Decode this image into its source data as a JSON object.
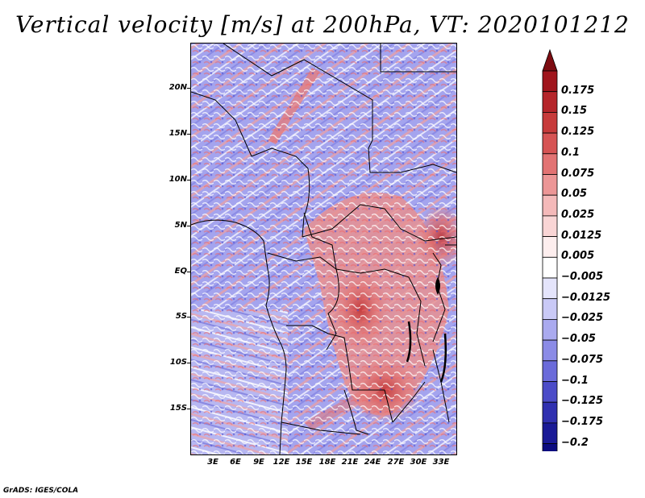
{
  "title": "Vertical velocity [m/s] at 200hPa, VT: 2020101212",
  "credit": "GrADS: IGES/COLA",
  "y_axis": {
    "labels": [
      "20N",
      "15N",
      "10N",
      "5N",
      "EQ",
      "5S",
      "10S",
      "15S"
    ]
  },
  "x_axis": {
    "labels": [
      "3E",
      "6E",
      "9E",
      "12E",
      "15E",
      "18E",
      "21E",
      "24E",
      "27E",
      "30E",
      "33E"
    ]
  },
  "colorbar": {
    "levels": [
      "0.175",
      "0.15",
      "0.125",
      "0.1",
      "0.075",
      "0.05",
      "0.025",
      "0.0125",
      "0.005",
      "−0.005",
      "−0.0125",
      "−0.025",
      "−0.05",
      "−0.075",
      "−0.1",
      "−0.125",
      "−0.175",
      "−0.2"
    ],
    "colors": [
      "#a0151c",
      "#b5252a",
      "#c73b3b",
      "#d65454",
      "#e27373",
      "#ec9696",
      "#f4b9b9",
      "#f9d5d5",
      "#fdeeee",
      "#ffffff",
      "#e4e4fb",
      "#c9c9f6",
      "#aaaaef",
      "#8b8be6",
      "#6b6bda",
      "#4c4cc8",
      "#3030b0",
      "#1a1a96",
      "#0c0c80"
    ],
    "top_arrow": "#7d0c12",
    "bottom_arrow": "#120c80"
  },
  "map_colors": {
    "red_zone": "#e98a8a",
    "red_deep": "#c23333",
    "blue_zone": "#8f8fe8",
    "blue_deep": "#5f5fd4",
    "white": "#ffffff",
    "coast": "#000000"
  }
}
